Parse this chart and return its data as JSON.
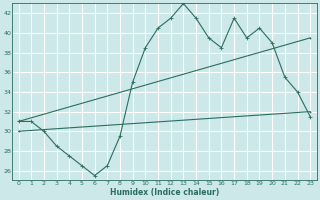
{
  "bg_color": "#cce8e8",
  "grid_color": "#ffffff",
  "line_color": "#2a6e5e",
  "x_label": "Humidex (Indice chaleur)",
  "ylim": [
    25,
    43
  ],
  "xlim": [
    -0.5,
    23.5
  ],
  "yticks": [
    26,
    28,
    30,
    32,
    34,
    36,
    38,
    40,
    42
  ],
  "xticks": [
    0,
    1,
    2,
    3,
    4,
    5,
    6,
    7,
    8,
    9,
    10,
    11,
    12,
    13,
    14,
    15,
    16,
    17,
    18,
    19,
    20,
    21,
    22,
    23
  ],
  "series1_x": [
    0,
    1,
    2,
    3,
    4,
    5,
    6,
    7,
    8,
    9,
    10,
    11,
    12,
    13,
    14,
    15,
    16,
    17,
    18,
    19,
    20,
    21,
    22,
    23
  ],
  "series1_y": [
    31,
    31,
    30,
    28.5,
    27.5,
    26.5,
    25.5,
    26.5,
    29.5,
    35,
    38.5,
    40.5,
    41.5,
    43,
    41.5,
    39.5,
    38.5,
    41.5,
    39.5,
    40.5,
    39,
    35.5,
    34,
    31.5
  ],
  "series2_x": [
    0,
    23
  ],
  "series2_y": [
    31,
    39.5
  ],
  "series3_x": [
    0,
    23
  ],
  "series3_y": [
    30,
    32
  ]
}
